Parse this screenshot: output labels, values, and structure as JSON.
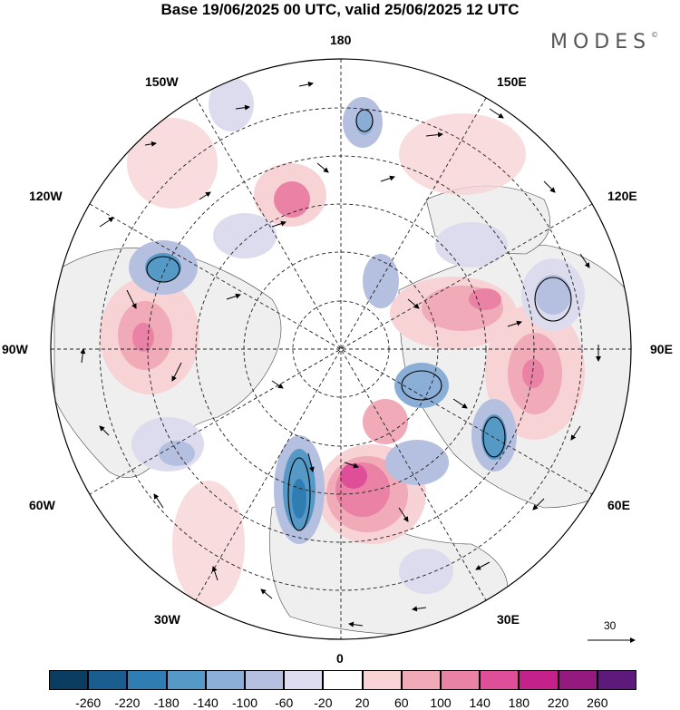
{
  "title": "Base 19/06/2025 00 UTC, valid 25/06/2025 12 UTC",
  "brand": {
    "name": "MODES",
    "mark": "©"
  },
  "longitude_labels": {
    "lon_180": "180",
    "lon_150w": "150W",
    "lon_150e": "150E",
    "lon_120w": "120W",
    "lon_120e": "120E",
    "lon_90w": "90W",
    "lon_90e": "90E",
    "lon_60w": "60W",
    "lon_60e": "60E",
    "lon_30w": "30W",
    "lon_30e": "30E",
    "lon_0": "0"
  },
  "wind_scale": {
    "label": "30"
  },
  "colorbar": {
    "colors": [
      "#0b3d61",
      "#1a5e8f",
      "#2f7db3",
      "#5599c6",
      "#8aaed6",
      "#b5c0e0",
      "#dcdcee",
      "#ffffff",
      "#f7d3d6",
      "#f0aab8",
      "#ea82a6",
      "#df4f99",
      "#c4228a",
      "#941a80",
      "#5d1a7a"
    ],
    "tick_labels": [
      "-260",
      "-220",
      "-180",
      "-140",
      "-100",
      "-60",
      "-20",
      "20",
      "60",
      "100",
      "140",
      "180",
      "220",
      "260"
    ]
  }
}
